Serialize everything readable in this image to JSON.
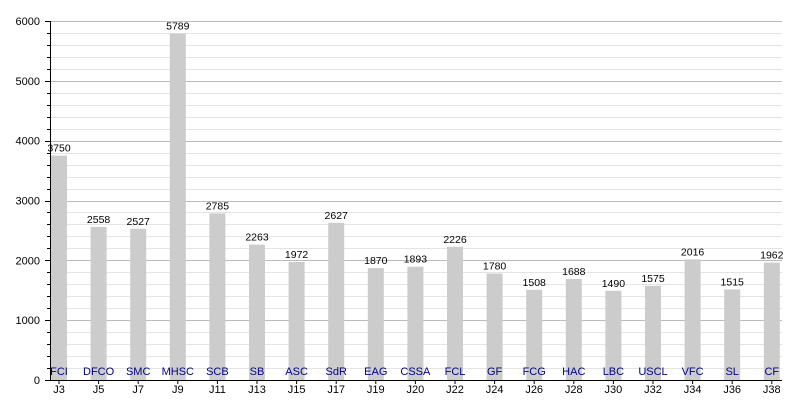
{
  "chart_data": {
    "type": "bar",
    "categories": [
      "J3",
      "J5",
      "J7",
      "J9",
      "J11",
      "J13",
      "J15",
      "J17",
      "J19",
      "J20",
      "J22",
      "J24",
      "J26",
      "J28",
      "J30",
      "J32",
      "J34",
      "J36",
      "J38"
    ],
    "bar_labels": [
      "FCI",
      "DFCO",
      "SMC",
      "MHSC",
      "SCB",
      "SB",
      "ASC",
      "SdR",
      "EAG",
      "CSSA",
      "FCL",
      "GF",
      "FCG",
      "HAC",
      "LBC",
      "USCL",
      "VFC",
      "SL",
      "CF"
    ],
    "values": [
      3750,
      2558,
      2527,
      5789,
      2785,
      2263,
      1972,
      2627,
      1870,
      1893,
      2226,
      1780,
      1508,
      1688,
      1490,
      1575,
      2016,
      1515,
      1962
    ],
    "value_labels": [
      "3750",
      "2558",
      "2527",
      "5789",
      "2785",
      "2263",
      "1972",
      "2627",
      "1870",
      "1893",
      "2226",
      "1780",
      "1508",
      "1688",
      "1490",
      "1575",
      "2016",
      "1515",
      "1962"
    ],
    "y_ticks": [
      0,
      1000,
      2000,
      3000,
      4000,
      5000,
      6000
    ],
    "y_tick_labels": [
      "0",
      "1000",
      "2000",
      "3000",
      "4000",
      "5000",
      "6000"
    ],
    "y_minor_step": 200,
    "ylim": [
      0,
      6000
    ],
    "title": "",
    "xlabel": "",
    "ylabel": "",
    "grid": true,
    "legend": false,
    "colors": {
      "bar": "#cccccc",
      "bar_label": "#00008b",
      "major_grid": "#bbbbbb",
      "minor_grid": "#e4e4e4",
      "axis": "#000000"
    }
  }
}
